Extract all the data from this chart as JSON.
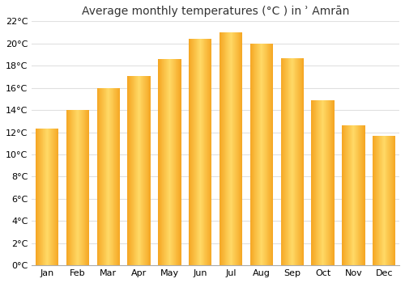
{
  "title": "Average monthly temperatures (°C ) in ʾ Amrān",
  "months": [
    "Jan",
    "Feb",
    "Mar",
    "Apr",
    "May",
    "Jun",
    "Jul",
    "Aug",
    "Sep",
    "Oct",
    "Nov",
    "Dec"
  ],
  "values": [
    12.3,
    14.0,
    16.0,
    17.1,
    18.6,
    20.4,
    21.0,
    20.0,
    18.7,
    14.9,
    12.6,
    11.7
  ],
  "ylim": [
    0,
    22
  ],
  "yticks": [
    0,
    2,
    4,
    6,
    8,
    10,
    12,
    14,
    16,
    18,
    20,
    22
  ],
  "bar_color_center": "#FFD966",
  "bar_color_edge": "#F5A623",
  "background_color": "#ffffff",
  "grid_color": "#e0e0e0",
  "title_fontsize": 10,
  "tick_fontsize": 8,
  "bar_width": 0.75
}
